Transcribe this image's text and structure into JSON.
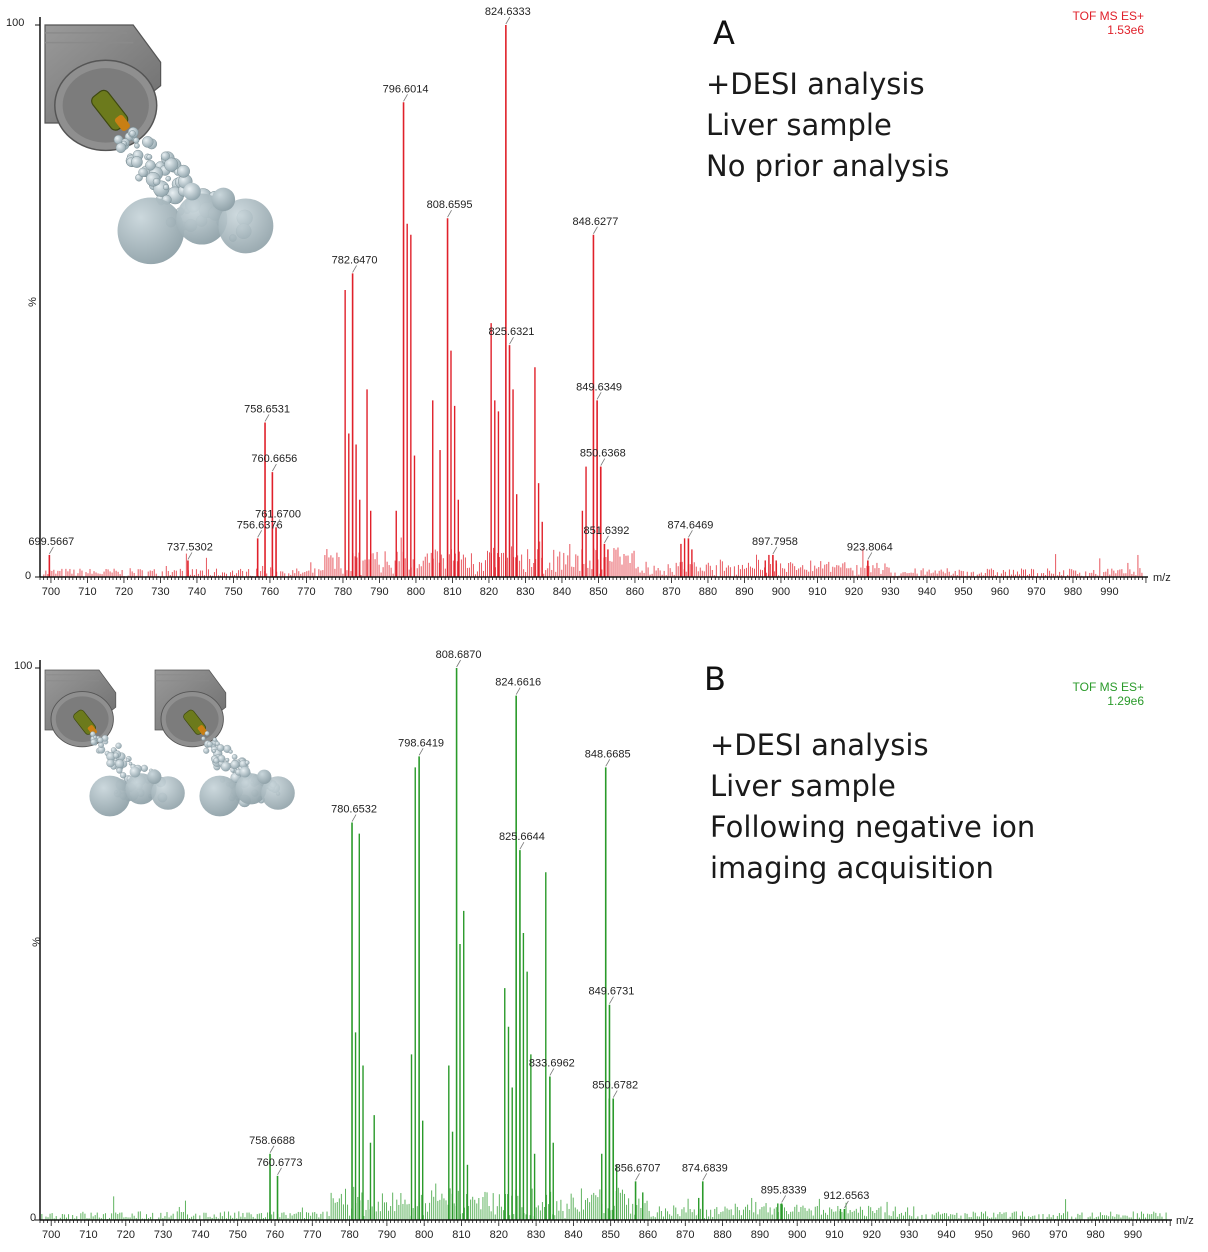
{
  "panels": [
    {
      "letter": "A",
      "description": [
        "+DESI analysis",
        "Liver sample",
        "No prior analysis"
      ],
      "instrument": "TOF MS ES+",
      "intensity": "1.53e6",
      "color": "#e0202a",
      "sprayers": 1
    },
    {
      "letter": "B",
      "description": [
        "+DESI analysis",
        "Liver sample",
        "Following negative ion",
        "imaging acquisition"
      ],
      "instrument": "TOF MS ES+",
      "intensity": "1.29e6",
      "color": "#2a9a2a",
      "sprayers": 2
    }
  ],
  "chart_data": [
    {
      "type": "bar",
      "xlabel": "m/z",
      "ylabel": "%",
      "xlim": [
        697,
        1000
      ],
      "ylim": [
        0,
        100
      ],
      "y_ticks": [
        "0",
        "100"
      ],
      "x_ticks": [
        700,
        710,
        720,
        730,
        740,
        750,
        760,
        770,
        780,
        790,
        800,
        810,
        820,
        830,
        840,
        850,
        860,
        870,
        880,
        890,
        900,
        910,
        920,
        930,
        940,
        950,
        960,
        970,
        980,
        990
      ],
      "labeled_peaks": [
        {
          "mz": 699.5667,
          "label": "699.5667",
          "intensity": 4
        },
        {
          "mz": 737.5302,
          "label": "737.5302",
          "intensity": 3
        },
        {
          "mz": 756.6376,
          "label": "756.6376",
          "intensity": 7
        },
        {
          "mz": 758.6531,
          "label": "758.6531",
          "intensity": 28
        },
        {
          "mz": 760.6656,
          "label": "760.6656",
          "intensity": 19
        },
        {
          "mz": 761.67,
          "label": "761.6700",
          "intensity": 9
        },
        {
          "mz": 782.647,
          "label": "782.6470",
          "intensity": 55
        },
        {
          "mz": 796.6014,
          "label": "796.6014",
          "intensity": 86
        },
        {
          "mz": 808.6595,
          "label": "808.6595",
          "intensity": 65
        },
        {
          "mz": 824.6333,
          "label": "824.6333",
          "intensity": 100
        },
        {
          "mz": 825.6321,
          "label": "825.6321",
          "intensity": 42
        },
        {
          "mz": 848.6277,
          "label": "848.6277",
          "intensity": 62
        },
        {
          "mz": 849.6349,
          "label": "849.6349",
          "intensity": 32
        },
        {
          "mz": 850.6368,
          "label": "850.6368",
          "intensity": 20
        },
        {
          "mz": 851.6392,
          "label": "851.6392",
          "intensity": 6
        },
        {
          "mz": 874.6469,
          "label": "874.6469",
          "intensity": 7
        },
        {
          "mz": 897.7958,
          "label": "897.7958",
          "intensity": 4
        },
        {
          "mz": 923.8064,
          "label": "923.8064",
          "intensity": 3
        }
      ],
      "other_peaks": [
        [
          780.6,
          52
        ],
        [
          781.6,
          26
        ],
        [
          783.6,
          24
        ],
        [
          784.6,
          14
        ],
        [
          786.6,
          34
        ],
        [
          787.6,
          12
        ],
        [
          794.6,
          12
        ],
        [
          797.6,
          64
        ],
        [
          798.6,
          62
        ],
        [
          799.6,
          22
        ],
        [
          804.6,
          32
        ],
        [
          806.6,
          23
        ],
        [
          809.6,
          41
        ],
        [
          810.6,
          31
        ],
        [
          811.6,
          14
        ],
        [
          820.6,
          46
        ],
        [
          821.6,
          32
        ],
        [
          822.6,
          30
        ],
        [
          826.6,
          34
        ],
        [
          827.6,
          15
        ],
        [
          832.6,
          38
        ],
        [
          833.6,
          17
        ],
        [
          834.6,
          10
        ],
        [
          845.6,
          12
        ],
        [
          846.6,
          20
        ],
        [
          850.6,
          20
        ],
        [
          852.6,
          5
        ],
        [
          872.6,
          6
        ],
        [
          873.6,
          7
        ],
        [
          875.6,
          5
        ],
        [
          895.7,
          3
        ],
        [
          896.7,
          4
        ],
        [
          898.7,
          3
        ]
      ]
    },
    {
      "type": "bar",
      "xlabel": "m/z",
      "ylabel": "%",
      "xlim": [
        697,
        1000
      ],
      "ylim": [
        0,
        100
      ],
      "y_ticks": [
        "0",
        "100"
      ],
      "x_ticks": [
        700,
        710,
        720,
        730,
        740,
        750,
        760,
        770,
        780,
        790,
        800,
        810,
        820,
        830,
        840,
        850,
        860,
        870,
        880,
        890,
        900,
        910,
        920,
        930,
        940,
        950,
        960,
        970,
        980,
        990
      ],
      "labeled_peaks": [
        {
          "mz": 758.6688,
          "label": "758.6688",
          "intensity": 12
        },
        {
          "mz": 760.6773,
          "label": "760.6773",
          "intensity": 8
        },
        {
          "mz": 780.6532,
          "label": "780.6532",
          "intensity": 72
        },
        {
          "mz": 798.6419,
          "label": "798.6419",
          "intensity": 84
        },
        {
          "mz": 808.687,
          "label": "808.6870",
          "intensity": 100
        },
        {
          "mz": 824.6616,
          "label": "824.6616",
          "intensity": 95
        },
        {
          "mz": 825.6644,
          "label": "825.6644",
          "intensity": 67
        },
        {
          "mz": 833.6962,
          "label": "833.6962",
          "intensity": 26
        },
        {
          "mz": 848.6685,
          "label": "848.6685",
          "intensity": 82
        },
        {
          "mz": 849.6731,
          "label": "849.6731",
          "intensity": 39
        },
        {
          "mz": 850.6782,
          "label": "850.6782",
          "intensity": 22
        },
        {
          "mz": 856.6707,
          "label": "856.6707",
          "intensity": 7
        },
        {
          "mz": 874.6839,
          "label": "874.6839",
          "intensity": 7
        },
        {
          "mz": 895.8339,
          "label": "895.8339",
          "intensity": 3
        },
        {
          "mz": 912.6563,
          "label": "912.6563",
          "intensity": 2
        }
      ],
      "other_peaks": [
        [
          781.6,
          34
        ],
        [
          782.6,
          70
        ],
        [
          783.6,
          28
        ],
        [
          785.6,
          14
        ],
        [
          786.6,
          19
        ],
        [
          796.6,
          30
        ],
        [
          797.6,
          82
        ],
        [
          799.6,
          18
        ],
        [
          806.6,
          28
        ],
        [
          807.6,
          16
        ],
        [
          809.6,
          50
        ],
        [
          810.6,
          56
        ],
        [
          811.6,
          10
        ],
        [
          821.6,
          42
        ],
        [
          822.6,
          35
        ],
        [
          823.6,
          24
        ],
        [
          826.6,
          52
        ],
        [
          827.6,
          45
        ],
        [
          828.6,
          30
        ],
        [
          829.6,
          12
        ],
        [
          832.6,
          63
        ],
        [
          834.6,
          14
        ],
        [
          847.6,
          12
        ],
        [
          849.6,
          22
        ],
        [
          851.6,
          10
        ],
        [
          858.6,
          5
        ],
        [
          873.6,
          4
        ],
        [
          894.8,
          3
        ],
        [
          911.6,
          2
        ]
      ]
    }
  ]
}
